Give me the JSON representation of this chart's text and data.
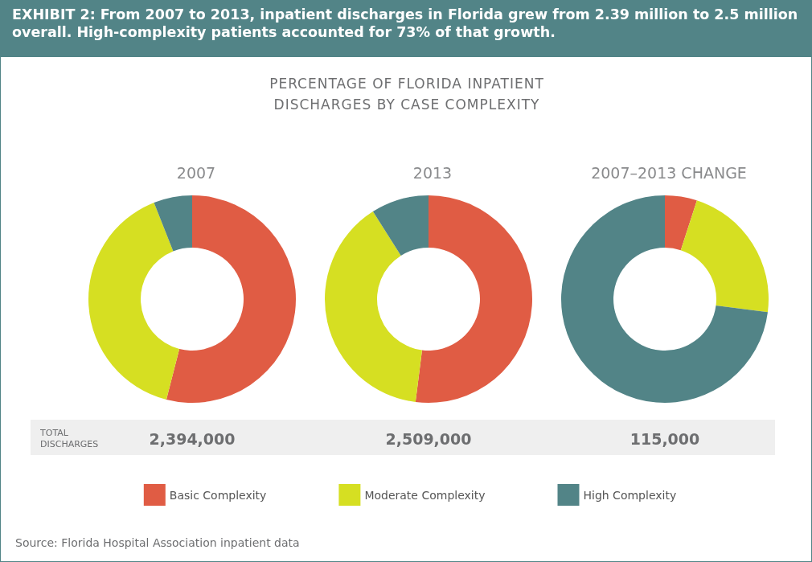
{
  "chart_data": [
    {
      "type": "other",
      "title": "EXHIBIT 2: From 2007 to 2013, inpatient discharges in Florida grew from 2.39 million to 2.5 million overall. High-complexity patients accounted for 73% of that growth.",
      "subtitle": "PERCENTAGE OF FLORIDA INPATIENT DISCHARGES BY CASE COMPLEXITY",
      "annotations": [
        "Source: Florida Hospital Association inpatient data"
      ]
    },
    {
      "type": "donut",
      "title": "2007",
      "categories": [
        null,
        null,
        null
      ],
      "values": [
        54,
        40,
        6
      ],
      "colors": [
        "#e05c44",
        "#d6df22",
        "#528487"
      ],
      "annotations": [
        "TOTAL DISCHARGES",
        "2,394,000"
      ]
    },
    {
      "type": "donut",
      "title": "2013",
      "categories": [
        "Basic Complexity",
        "Moderate Complexity",
        "High Complexity"
      ],
      "values": [
        52,
        39,
        9
      ],
      "colors": [
        "#e05c44",
        "#d6df22",
        "#528487"
      ],
      "annotations": [
        "2,509,000"
      ],
      "legend": "bottom"
    },
    {
      "type": "donut",
      "title": "2007–2013 CHANGE",
      "categories": [
        null,
        null,
        null
      ],
      "values": [
        5,
        22,
        73
      ],
      "colors": [
        "#e05c44",
        "#d6df22",
        "#528487"
      ],
      "annotations": [
        "115,000"
      ]
    }
  ]
}
